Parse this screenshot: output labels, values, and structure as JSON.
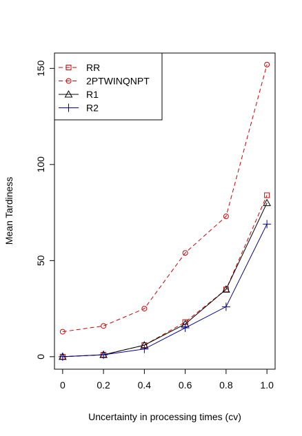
{
  "chart_data": {
    "type": "line",
    "title": "",
    "xlabel": "Uncertainty in processing times (cv)",
    "ylabel": "Mean Tardiness",
    "x": [
      0,
      0.2,
      0.4,
      0.6,
      0.8,
      1.0
    ],
    "x_tick_labels": [
      "0",
      "0.2",
      "0.4",
      "0.6",
      "0.8",
      "1.0"
    ],
    "y_ticks": [
      0,
      50,
      100,
      150
    ],
    "y_tick_labels": [
      "0",
      "50",
      "100",
      "150"
    ],
    "xlim": [
      -0.04,
      1.04
    ],
    "ylim": [
      -6.5,
      158
    ],
    "grid": false,
    "legend_position": "top-left",
    "series": [
      {
        "name": "RR",
        "marker": "square",
        "color": "#cc0000",
        "dashed": true,
        "values": [
          0,
          1,
          6,
          18,
          35,
          84
        ]
      },
      {
        "name": "2PTWINQNPT",
        "marker": "circle",
        "color": "#cc0000",
        "dashed": true,
        "values": [
          13,
          16,
          25,
          54,
          73,
          152
        ]
      },
      {
        "name": "R1",
        "marker": "triangle",
        "color": "#000000",
        "dashed": false,
        "values": [
          0,
          1,
          6,
          17,
          35,
          80
        ]
      },
      {
        "name": "R2",
        "marker": "plus",
        "color": "#00008b",
        "dashed": false,
        "values": [
          0,
          1,
          4,
          15,
          26,
          69
        ]
      }
    ]
  }
}
